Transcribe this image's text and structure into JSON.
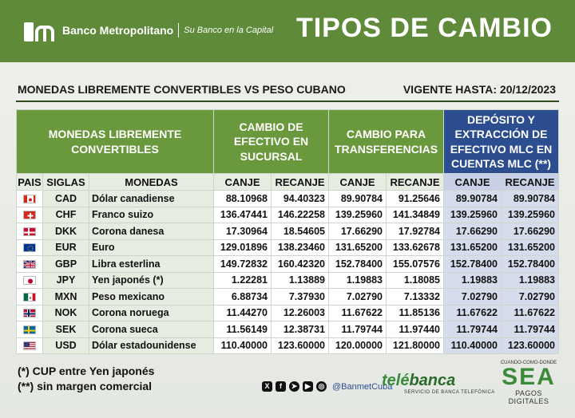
{
  "header": {
    "bank_name": "Banco Metropolitano",
    "slogan": "Su Banco en la Capital",
    "title": "TIPOS DE CAMBIO"
  },
  "subtitle": {
    "left": "MONEDAS LIBREMENTE CONVERTIBLES VS PESO CUBANO",
    "right": "VIGENTE HASTA: 20/12/2023"
  },
  "table": {
    "group_headers": {
      "currencies": "MONEDAS LIBREMENTE CONVERTIBLES",
      "cash": "CAMBIO DE EFECTIVO EN SUCURSAL",
      "transfers": "CAMBIO PARA TRANSFERENCIAS",
      "mlc": "DEPÓSITO Y EXTRACCIÓN DE EFECTIVO MLC EN CUENTAS MLC (**)"
    },
    "columns": [
      "PAIS",
      "SIGLAS",
      "MONEDAS",
      "CANJE",
      "RECANJE",
      "CANJE",
      "RECANJE",
      "CANJE",
      "RECANJE"
    ],
    "rows": [
      {
        "flag": "canada",
        "code": "CAD",
        "name": "Dólar canadiense",
        "cash_canje": "88.10968",
        "cash_recanje": "94.40323",
        "tr_canje": "89.90784",
        "tr_recanje": "91.25646",
        "mlc_canje": "89.90784",
        "mlc_recanje": "89.90784"
      },
      {
        "flag": "switzerland",
        "code": "CHF",
        "name": "Franco suizo",
        "cash_canje": "136.47441",
        "cash_recanje": "146.22258",
        "tr_canje": "139.25960",
        "tr_recanje": "141.34849",
        "mlc_canje": "139.25960",
        "mlc_recanje": "139.25960"
      },
      {
        "flag": "denmark",
        "code": "DKK",
        "name": "Corona danesa",
        "cash_canje": "17.30964",
        "cash_recanje": "18.54605",
        "tr_canje": "17.66290",
        "tr_recanje": "17.92784",
        "mlc_canje": "17.66290",
        "mlc_recanje": "17.66290"
      },
      {
        "flag": "eu",
        "code": "EUR",
        "name": "Euro",
        "cash_canje": "129.01896",
        "cash_recanje": "138.23460",
        "tr_canje": "131.65200",
        "tr_recanje": "133.62678",
        "mlc_canje": "131.65200",
        "mlc_recanje": "131.65200"
      },
      {
        "flag": "uk",
        "code": "GBP",
        "name": "Libra esterlina",
        "cash_canje": "149.72832",
        "cash_recanje": "160.42320",
        "tr_canje": "152.78400",
        "tr_recanje": "155.07576",
        "mlc_canje": "152.78400",
        "mlc_recanje": "152.78400"
      },
      {
        "flag": "japan",
        "code": "JPY",
        "name": "Yen japonés (*)",
        "cash_canje": "1.22281",
        "cash_recanje": "1.13889",
        "tr_canje": "1.19883",
        "tr_recanje": "1.18085",
        "mlc_canje": "1.19883",
        "mlc_recanje": "1.19883"
      },
      {
        "flag": "mexico",
        "code": "MXN",
        "name": "Peso mexicano",
        "cash_canje": "6.88734",
        "cash_recanje": "7.37930",
        "tr_canje": "7.02790",
        "tr_recanje": "7.13332",
        "mlc_canje": "7.02790",
        "mlc_recanje": "7.02790"
      },
      {
        "flag": "norway",
        "code": "NOK",
        "name": "Corona noruega",
        "cash_canje": "11.44270",
        "cash_recanje": "12.26003",
        "tr_canje": "11.67622",
        "tr_recanje": "11.85136",
        "mlc_canje": "11.67622",
        "mlc_recanje": "11.67622"
      },
      {
        "flag": "sweden",
        "code": "SEK",
        "name": "Corona sueca",
        "cash_canje": "11.56149",
        "cash_recanje": "12.38731",
        "tr_canje": "11.79744",
        "tr_recanje": "11.97440",
        "mlc_canje": "11.79744",
        "mlc_recanje": "11.79744"
      },
      {
        "flag": "usa",
        "code": "USD",
        "name": "Dólar estadounidense",
        "cash_canje": "110.40000",
        "cash_recanje": "123.60000",
        "tr_canje": "120.00000",
        "tr_recanje": "121.80000",
        "mlc_canje": "110.40000",
        "mlc_recanje": "123.60000"
      }
    ]
  },
  "footnotes": {
    "note1": "(*) CUP entre Yen japonés",
    "note2": "(**) sin margen comercial"
  },
  "social": {
    "icons": [
      "x-icon",
      "facebook-icon",
      "telegram-icon",
      "youtube-icon",
      "instagram-icon"
    ],
    "handle": "@BanmetCuba"
  },
  "telebanca": {
    "name_a": "telé",
    "name_b": "banca",
    "subtitle": "SERVICIO DE BANCA TELEFÓNICA"
  },
  "sea": {
    "top": "CUANDO-COMO-DONDE",
    "main": "SEA",
    "bottom": "PAGOS DIGITALES"
  },
  "colors": {
    "brand_green": "#5e8a3a",
    "header_blue": "#2c4d8f"
  }
}
